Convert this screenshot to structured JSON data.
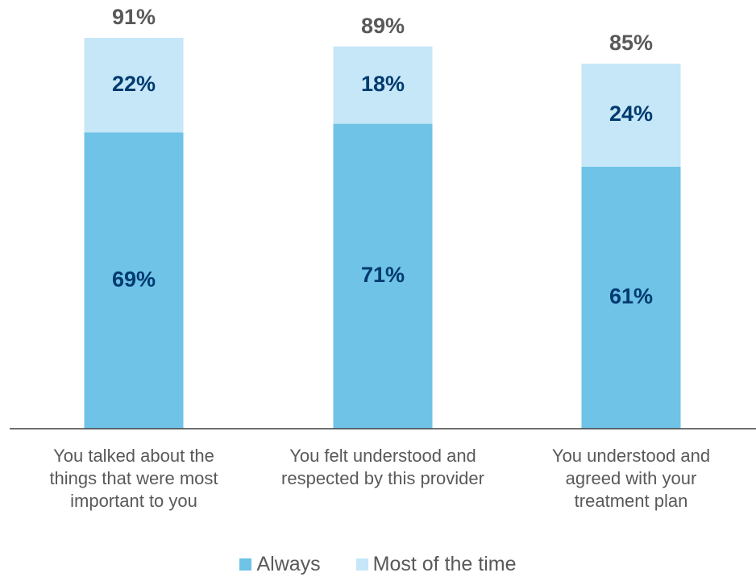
{
  "chart_data": {
    "type": "bar",
    "stacked": true,
    "categories": [
      "You talked about the\nthings that were most\nimportant to you",
      "You felt understood and\nrespected by this provider",
      "You understood and\nagreed with your\ntreatment plan"
    ],
    "series": [
      {
        "name": "Always",
        "values": [
          69,
          71,
          61
        ],
        "labels": [
          "69%",
          "71%",
          "61%"
        ],
        "color": "#6ec3e6"
      },
      {
        "name": "Most of the time",
        "values": [
          22,
          18,
          24
        ],
        "labels": [
          "22%",
          "18%",
          "24%"
        ],
        "color": "#c5e7f7"
      }
    ],
    "totals": [
      91,
      89,
      85
    ],
    "total_labels": [
      "91%",
      "89%",
      "85%"
    ],
    "ylim": [
      0,
      91
    ],
    "grid": false,
    "legend": "bottom",
    "inner_label_color": "#003a70",
    "total_label_color": "#595959",
    "axis_color": "#404040"
  }
}
